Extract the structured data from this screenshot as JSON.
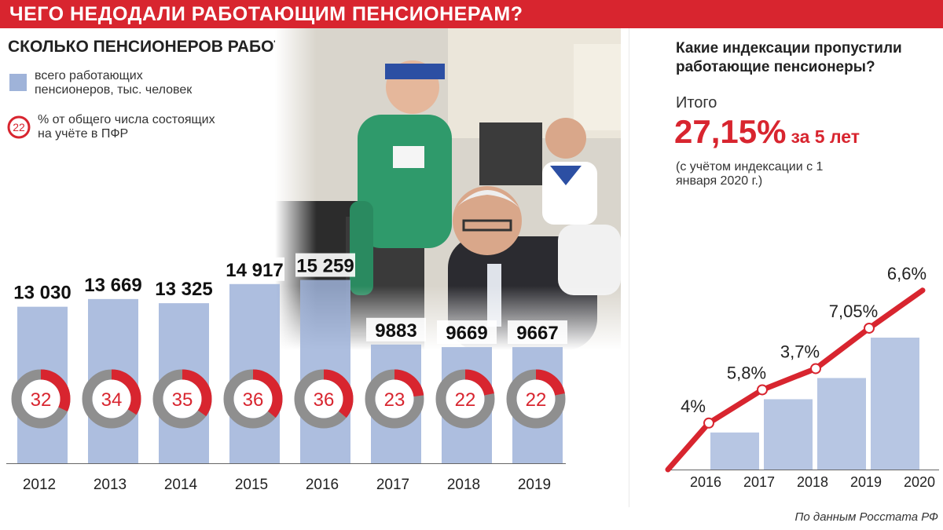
{
  "banner": "ЧЕГО НЕДОДАЛИ РАБОТАЮЩИМ ПЕНСИОНЕРАМ?",
  "left_title": "СКОЛЬКО ПЕНСИОНЕРОВ РАБОТАЕТ?",
  "legend": {
    "bars": "всего работающих пенсионеров, тыс. человек",
    "ring_value": "22",
    "ring": "% от общего числа состоящих на учёте в ПФР"
  },
  "right_title": "Какие индексации пропустили работающие пенсионеры?",
  "total_label": "Итого",
  "total_value": "27,15%",
  "total_suffix": "за 5 лет",
  "total_note": "(с учётом индексации с 1 января 2020 г.)",
  "source": "По данным Росстата РФ",
  "colors": {
    "accent": "#d8252f",
    "bar": "#9fb3d9",
    "ring_track": "#8f8f8f"
  },
  "chart_data": [
    {
      "type": "bar",
      "categories": [
        "2012",
        "2013",
        "2014",
        "2015",
        "2016",
        "2017",
        "2018",
        "2019"
      ],
      "series": [
        {
          "values": [
            13030,
            13669,
            13325,
            14917,
            15259,
            9883,
            9669,
            9667
          ],
          "labels": [
            "13 030",
            "13 669",
            "13 325",
            "14 917",
            "15 259",
            "9883",
            "9669",
            "9667"
          ]
        },
        {
          "values": [
            32,
            34,
            35,
            36,
            36,
            23,
            22,
            22
          ]
        }
      ],
      "title": "СКОЛЬКО ПЕНСИОНЕРОВ РАБОТАЕТ?",
      "grid": false
    },
    {
      "type": "line",
      "x": [
        "2016",
        "2017",
        "2018",
        "2019",
        "2020"
      ],
      "series": [
        {
          "values": [
            4,
            5.8,
            3.7,
            7.05,
            6.6
          ],
          "labels": [
            "4%",
            "5,8%",
            "3,7%",
            "7,05%",
            "6,6%"
          ]
        }
      ],
      "title": "Какие индексации пропустили работающие пенсионеры?",
      "grid": false
    }
  ]
}
